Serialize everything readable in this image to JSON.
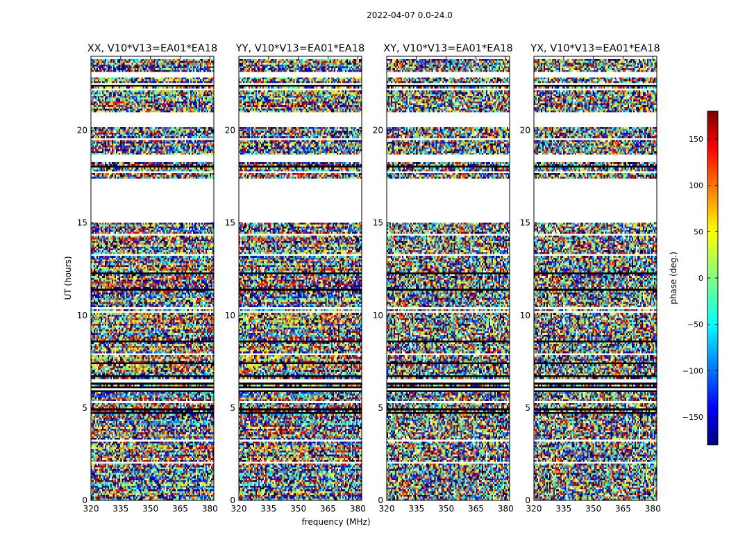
{
  "chart_data": {
    "type": "heatmap",
    "title": "2022-04-07 0.0-24.0",
    "xlabel": "frequency (MHz)",
    "ylabel": "UT (hours)",
    "xlim": [
      320,
      382
    ],
    "ylim": [
      0,
      24
    ],
    "xticks": [
      "320",
      "335",
      "350",
      "365",
      "380"
    ],
    "xtick_values": [
      320,
      335,
      350,
      365,
      380
    ],
    "yticks": [
      "0",
      "5",
      "10",
      "15",
      "20"
    ],
    "ytick_values": [
      0,
      5,
      10,
      15,
      20
    ],
    "colorbar": {
      "label": "phase (deg.)",
      "range": [
        -180,
        180
      ],
      "ticks": [
        "150",
        "100",
        "50",
        "0",
        "−50",
        "−100",
        "−150"
      ],
      "tick_values": [
        150,
        100,
        50,
        0,
        -50,
        -100,
        -150
      ],
      "colormap": "jet"
    },
    "flagged_ut_ranges": [
      [
        15.1,
        17.5
      ],
      [
        20.3,
        21.1
      ],
      [
        23.0,
        23.3
      ]
    ],
    "panels": [
      {
        "name": "XX",
        "title": "XX, V10*V13=EA01*EA18",
        "coherence": "coherent"
      },
      {
        "name": "YY",
        "title": "YY, V10*V13=EA01*EA18",
        "coherence": "coherent"
      },
      {
        "name": "XY",
        "title": "XY, V10*V13=EA01*EA18",
        "coherence": "noise"
      },
      {
        "name": "YX",
        "title": "YX, V10*V13=EA01*EA18",
        "coherence": "noise"
      }
    ],
    "colors": {
      "frame": "#000000",
      "background": "#ffffff"
    }
  }
}
